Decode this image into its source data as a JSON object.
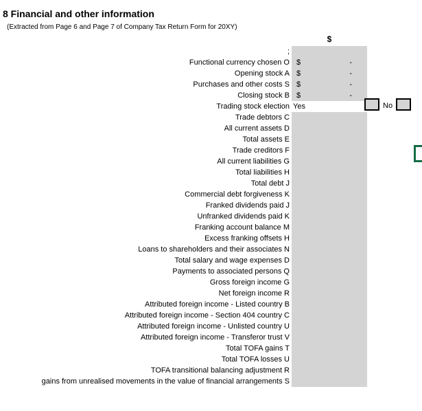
{
  "page": {
    "title": "8 Financial and other information",
    "subtitle": "(Extracted from Page 6 and Page 7 of Company Tax Return Form for 20XY)"
  },
  "sheet": {
    "amount_column_header": "$",
    "rows": [
      {
        "label": ";",
        "type": "blank"
      },
      {
        "label": "Functional currency chosen O",
        "type": "currency",
        "currency_symbol": "$",
        "amount": "-"
      },
      {
        "label": "Opening stock A",
        "type": "currency",
        "currency_symbol": "$",
        "amount": "-"
      },
      {
        "label": "Purchases and other costs S",
        "type": "currency",
        "currency_symbol": "$",
        "amount": "-"
      },
      {
        "label": "Closing stock B",
        "type": "currency",
        "currency_symbol": "$",
        "amount": "-"
      },
      {
        "label": "Trading stock election",
        "type": "yesno",
        "yes_label": "Yes",
        "no_label": "No",
        "yes_checked": false,
        "no_checked": false
      },
      {
        "label": "Trade debtors C",
        "type": "blank"
      },
      {
        "label": "All current assets D",
        "type": "blank"
      },
      {
        "label": "Total assets E",
        "type": "blank"
      },
      {
        "label": "Trade creditors F",
        "type": "blank"
      },
      {
        "label": "All current liabilities G",
        "type": "blank"
      },
      {
        "label": "Total liabilities H",
        "type": "blank"
      },
      {
        "label": "Total debt J",
        "type": "blank"
      },
      {
        "label": "Commercial debt forgiveness K",
        "type": "blank"
      },
      {
        "label": "Franked dividends paid J",
        "type": "blank"
      },
      {
        "label": "Unfranked dividends paid K",
        "type": "blank"
      },
      {
        "label": "Franking account balance M",
        "type": "blank"
      },
      {
        "label": "Excess franking offsets H",
        "type": "blank"
      },
      {
        "label": "Loans to shareholders and their associates N",
        "type": "blank"
      },
      {
        "label": "Total salary and wage expenses D",
        "type": "blank"
      },
      {
        "label": "Payments to associated persons Q",
        "type": "blank"
      },
      {
        "label": "Gross foreign income G",
        "type": "blank"
      },
      {
        "label": "Net foreign income R",
        "type": "blank"
      },
      {
        "label": "Attributed foreign income - Listed country B",
        "type": "blank"
      },
      {
        "label": "Attributed foreign income - Section 404 country C",
        "type": "blank"
      },
      {
        "label": "Attributed foreign income - Unlisted country U",
        "type": "blank"
      },
      {
        "label": "Attributed foreign income - Transferor trust V",
        "type": "blank"
      },
      {
        "label": "Total TOFA gains T",
        "type": "blank"
      },
      {
        "label": "Total TOFA losses U",
        "type": "blank"
      },
      {
        "label": "TOFA transitional balancing adjustment R",
        "type": "blank"
      },
      {
        "label": "gains from unrealised movements in the value of financial arrangements S",
        "type": "blank"
      }
    ]
  },
  "colors": {
    "cell_fill": "#d4d4d4",
    "checkbox_border": "#000000",
    "green_outline": "#156b45"
  }
}
